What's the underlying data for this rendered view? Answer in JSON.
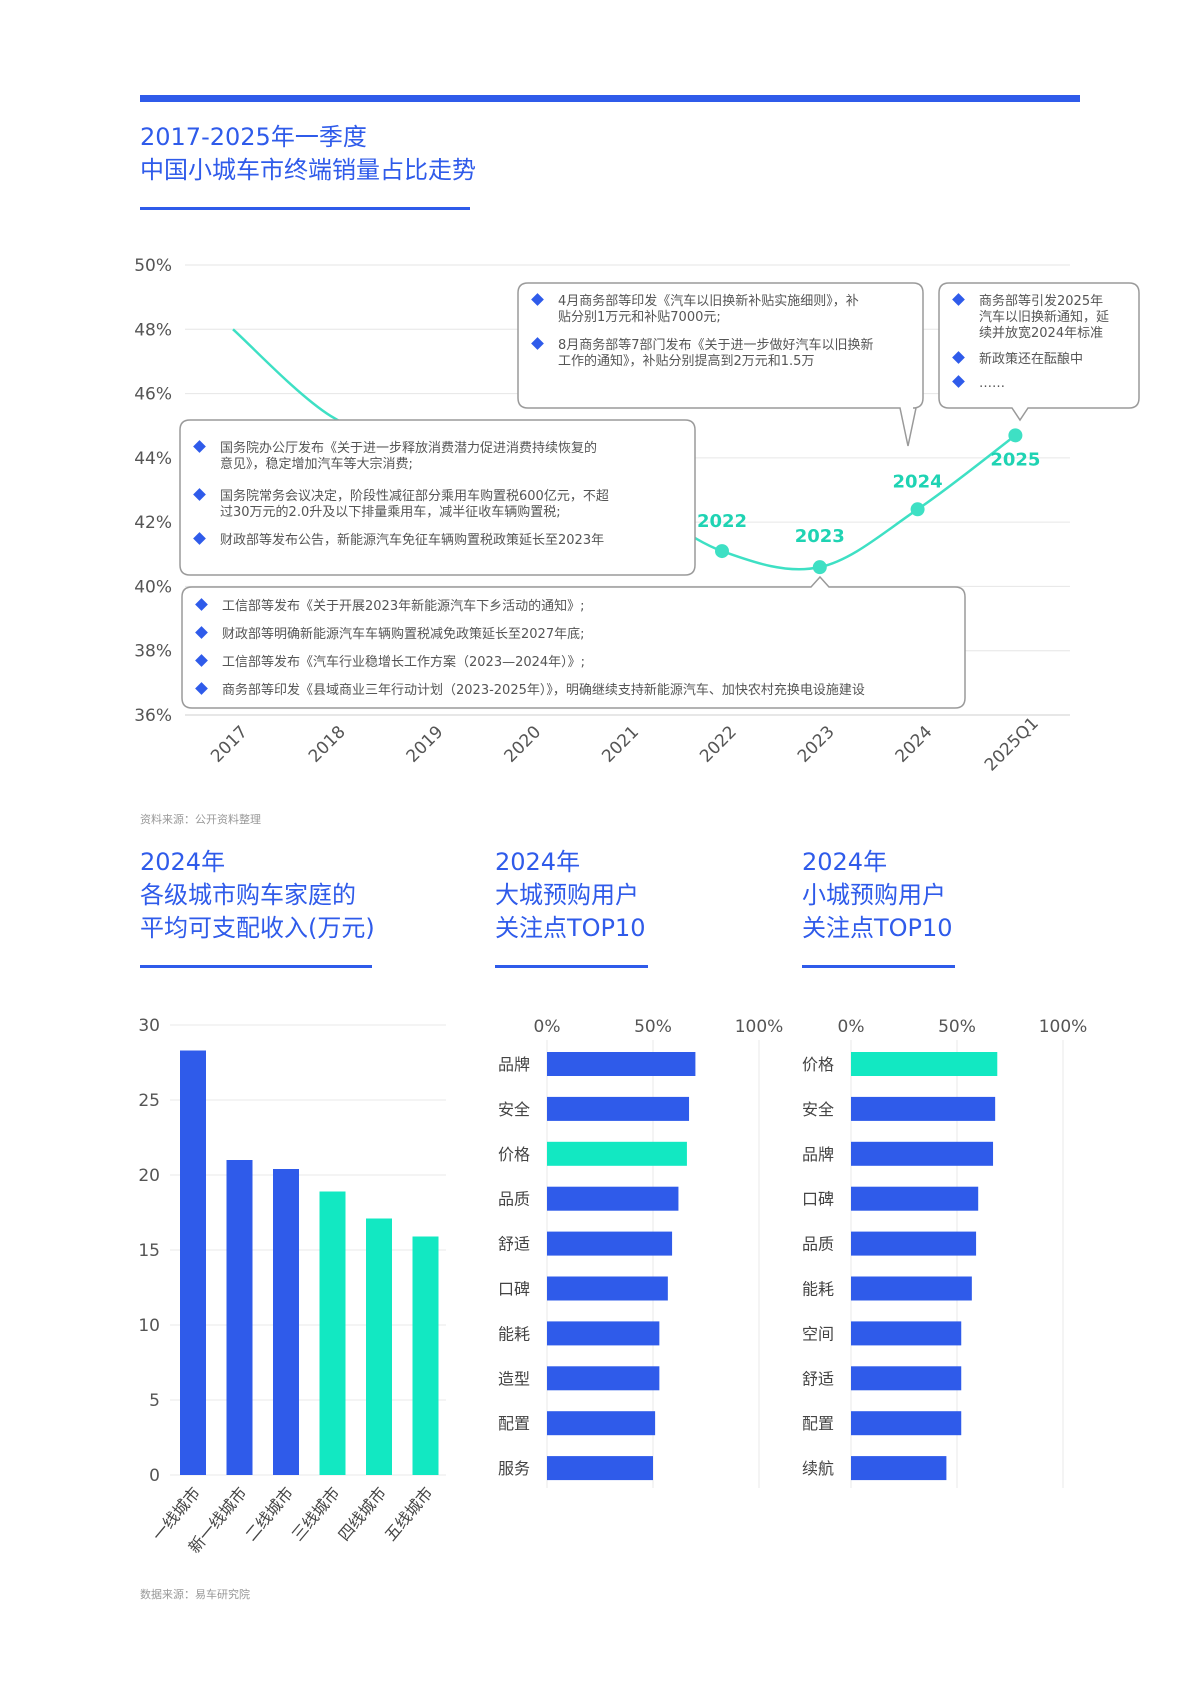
{
  "header": {
    "title_line1": "2017-2025年一季度",
    "title_line2": "中国小城车市终端销量占比走势"
  },
  "line_chart": {
    "year_labels": [
      {
        "x": "2022",
        "text": "2022"
      },
      {
        "x": "2023",
        "text": "2023"
      },
      {
        "x": "2024",
        "text": "2024"
      },
      {
        "x": "2025Q1",
        "text": "2025"
      }
    ],
    "callouts": [
      {
        "items": [
          "国务院办公厅发布《关于进一步释放消费潜力促进消费持续恢复的",
          "意见》，稳定增加汽车等大宗消费;",
          "国务院常务会议决定，阶段性减征部分乘用车购置税600亿元，不超",
          "过30万元的2.0升及以下排量乘用车，减半征收车辆购置税;",
          "财政部等发布公告，新能源汽车免征车辆购置税政策延长至2023年"
        ]
      },
      {
        "items": [
          "工信部等发布《关于开展2023年新能源汽车下乡活动的通知》;",
          "财政部等明确新能源汽车车辆购置税减免政策延长至2027年底;",
          "工信部等发布《汽车行业稳增长工作方案（2023—2024年）》;",
          "商务部等印发《县域商业三年行动计划（2023-2025年）》，明确继续支持新能源汽车、加快农村充换电设施建设"
        ]
      },
      {
        "items": [
          "4月商务部等印发《汽车以旧换新补贴实施细则》，补",
          "贴分别1万元和补贴7000元;",
          "8月商务部等7部门发布《关于进一步做好汽车以旧换新",
          "工作的通知》，补贴分别提高到2万元和1.5万"
        ]
      },
      {
        "items": [
          "商务部等引发2025年",
          "汽车以旧换新通知，延",
          "续并放宽2024年标准",
          "新政策还在酝酿中",
          "……"
        ]
      }
    ],
    "source": "资料来源：公开资料整理"
  },
  "section_titles": {
    "income": [
      "2024年",
      "各级城市购车家庭的",
      "平均可支配收入(万元)"
    ],
    "big_city": [
      "2024年",
      "大城预购用户",
      "关注点TOP10"
    ],
    "small_city": [
      "2024年",
      "小城预购用户",
      "关注点TOP10"
    ]
  },
  "footer": {
    "source": "数据来源：易车研究院"
  },
  "colors": {
    "blue": "#2f5bea",
    "teal": "#12e8c2",
    "line": "#3ee0c4"
  },
  "chart_data": [
    {
      "type": "line",
      "x": [
        "2017",
        "2018",
        "2019",
        "2020",
        "2021",
        "2022",
        "2023",
        "2024",
        "2025Q1"
      ],
      "series": [
        {
          "values": [
            48.0,
            45.3,
            44.2,
            43.6,
            42.8,
            41.1,
            40.6,
            42.4,
            44.7
          ]
        }
      ],
      "y_ticks": [
        "36%",
        "38%",
        "40%",
        "42%",
        "44%",
        "46%",
        "48%",
        "50%"
      ],
      "ylim": [
        36,
        50
      ],
      "grid": true
    },
    {
      "type": "bar",
      "categories": [
        "一线城市",
        "新一线城市",
        "二线城市",
        "三线城市",
        "四线城市",
        "五线城市"
      ],
      "values": [
        28.3,
        21.0,
        20.4,
        18.9,
        17.1,
        15.9
      ],
      "highlight": [
        false,
        false,
        false,
        true,
        true,
        true
      ],
      "y_ticks": [
        "0",
        "5",
        "10",
        "15",
        "20",
        "25",
        "30"
      ],
      "ylim": [
        0,
        30
      ]
    },
    {
      "type": "bar",
      "orientation": "horizontal",
      "categories": [
        "品牌",
        "安全",
        "价格",
        "品质",
        "舒适",
        "口碑",
        "能耗",
        "造型",
        "配置",
        "服务"
      ],
      "values": [
        70,
        67,
        66,
        62,
        59,
        57,
        53,
        53,
        51,
        50
      ],
      "highlight": [
        false,
        false,
        true,
        false,
        false,
        false,
        false,
        false,
        false,
        false
      ],
      "x_ticks": [
        "0%",
        "50%",
        "100%"
      ],
      "xlim": [
        0,
        100
      ]
    },
    {
      "type": "bar",
      "orientation": "horizontal",
      "categories": [
        "价格",
        "安全",
        "品牌",
        "口碑",
        "品质",
        "能耗",
        "空间",
        "舒适",
        "配置",
        "续航"
      ],
      "values": [
        69,
        68,
        67,
        60,
        59,
        57,
        52,
        52,
        52,
        45
      ],
      "highlight": [
        true,
        false,
        false,
        false,
        false,
        false,
        false,
        false,
        false,
        false
      ],
      "x_ticks": [
        "0%",
        "50%",
        "100%"
      ],
      "xlim": [
        0,
        100
      ]
    }
  ]
}
